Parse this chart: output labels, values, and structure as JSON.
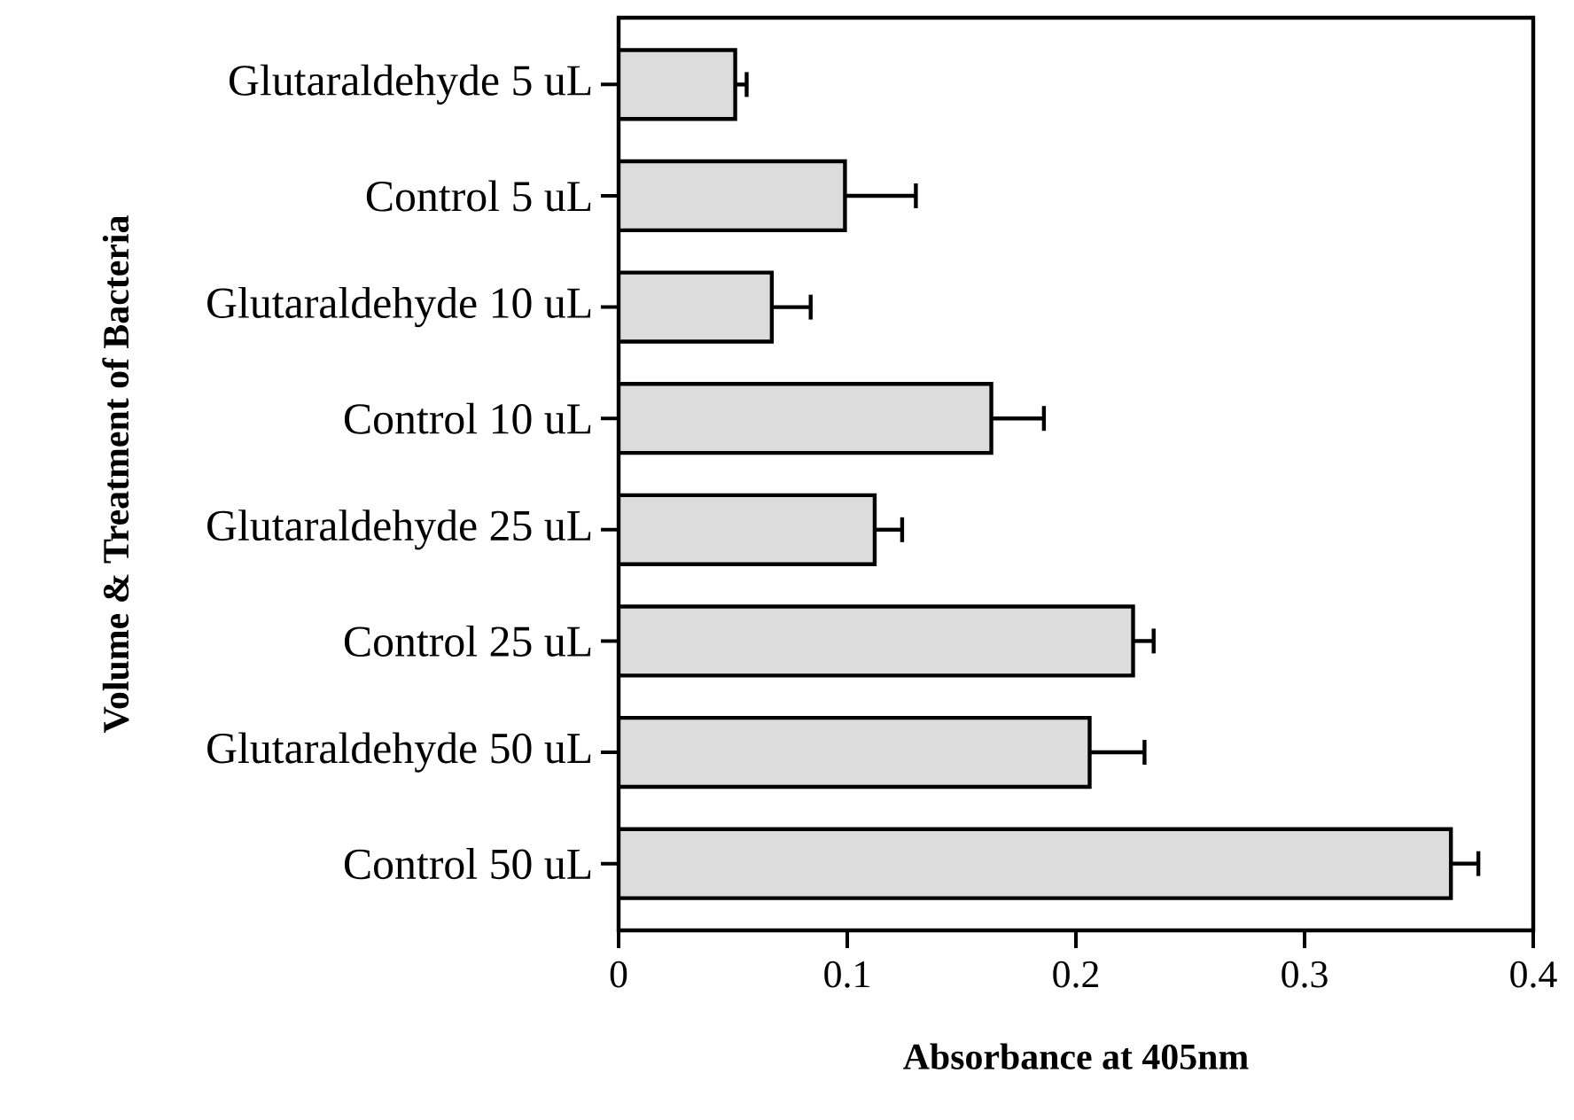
{
  "chart_data": {
    "type": "bar",
    "orientation": "horizontal",
    "xlabel": "Absorbance at 405nm",
    "ylabel": "Volume & Treatment of Bacteria",
    "categories": [
      "Glutaraldehyde 5 uL",
      "Control 5 uL",
      "Glutaraldehyde 10 uL",
      "Control 10 uL",
      "Glutaraldehyde 25 uL",
      "Control 25 uL",
      "Glutaraldehyde 50 uL",
      "Control 50 uL"
    ],
    "values": [
      0.051,
      0.099,
      0.067,
      0.163,
      0.112,
      0.225,
      0.206,
      0.364
    ],
    "errors": [
      [
        0.051,
        0.056
      ],
      [
        0.099,
        0.13
      ],
      [
        0.067,
        0.084
      ],
      [
        0.163,
        0.186
      ],
      [
        0.112,
        0.124
      ],
      [
        0.225,
        0.234
      ],
      [
        0.206,
        0.23
      ],
      [
        0.364,
        0.376
      ]
    ],
    "color": "#dcdcdc",
    "xlim": [
      0,
      0.4
    ],
    "xticks": [
      0,
      0.1,
      0.2,
      0.3,
      0.4
    ],
    "grid": false
  }
}
